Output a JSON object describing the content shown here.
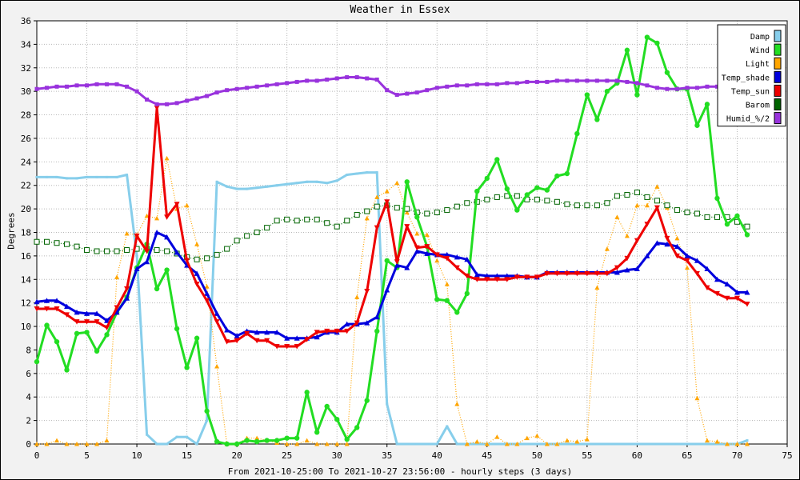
{
  "chart_data": {
    "type": "line",
    "title": "Weather in Essex",
    "xlabel": "From 2021-10-25:00 To 2021-10-27 23:56:00 - hourly steps (3 days)",
    "ylabel": "Degrees",
    "xlim": [
      0,
      75
    ],
    "ylim": [
      0,
      36
    ],
    "xticks": [
      0,
      5,
      10,
      15,
      20,
      25,
      30,
      35,
      40,
      45,
      50,
      55,
      60,
      65,
      70,
      75
    ],
    "yticks": [
      0,
      2,
      4,
      6,
      8,
      10,
      12,
      14,
      16,
      18,
      20,
      22,
      24,
      26,
      28,
      30,
      32,
      34,
      36
    ],
    "grid": true,
    "legend_position": "top-right",
    "x": [
      0,
      1,
      2,
      3,
      4,
      5,
      6,
      7,
      8,
      9,
      10,
      11,
      12,
      13,
      14,
      15,
      16,
      17,
      18,
      19,
      20,
      21,
      22,
      23,
      24,
      25,
      26,
      27,
      28,
      29,
      30,
      31,
      32,
      33,
      34,
      35,
      36,
      37,
      38,
      39,
      40,
      41,
      42,
      43,
      44,
      45,
      46,
      47,
      48,
      49,
      50,
      51,
      52,
      53,
      54,
      55,
      56,
      57,
      58,
      59,
      60,
      61,
      62,
      63,
      64,
      65,
      66,
      67,
      68,
      69,
      70,
      71
    ],
    "series": [
      {
        "name": "Damp",
        "color": "#87ceeb",
        "values": [
          22.7,
          22.7,
          22.7,
          22.6,
          22.6,
          22.7,
          22.7,
          22.7,
          22.7,
          22.9,
          16.0,
          0.8,
          0.0,
          0.0,
          0.6,
          0.6,
          0.0,
          2.0,
          22.3,
          21.9,
          21.7,
          21.7,
          21.8,
          21.9,
          22.0,
          22.1,
          22.2,
          22.3,
          22.3,
          22.2,
          22.4,
          22.9,
          23.0,
          23.1,
          23.1,
          3.4,
          0.0,
          0.0,
          0.0,
          0.0,
          0.0,
          1.5,
          0.0,
          0.0,
          0.0,
          0.0,
          0.0,
          0.0,
          0.0,
          0.0,
          0.0,
          0.0,
          0.0,
          0.0,
          0.0,
          0.0,
          0.0,
          0.0,
          0.0,
          0.0,
          0.0,
          0.0,
          0.0,
          0.0,
          0.0,
          0.0,
          0.0,
          0.0,
          0.0,
          0.0,
          0.0,
          0.3
        ]
      },
      {
        "name": "Wind",
        "color": "#22dd22",
        "values": [
          7.0,
          10.1,
          8.7,
          6.3,
          9.4,
          9.5,
          7.9,
          9.3,
          11.2,
          12.5,
          15.0,
          17.0,
          13.2,
          14.8,
          9.8,
          6.5,
          9.0,
          2.8,
          0.2,
          0.0,
          0.0,
          0.3,
          0.2,
          0.3,
          0.3,
          0.5,
          0.5,
          4.4,
          1.0,
          3.2,
          2.1,
          0.4,
          1.4,
          3.7,
          9.6,
          15.6,
          15.0,
          22.3,
          19.3,
          16.8,
          12.3,
          12.2,
          11.2,
          12.8,
          21.5,
          22.6,
          24.2,
          21.7,
          19.9,
          21.2,
          21.8,
          21.6,
          22.8,
          23.0,
          26.4,
          29.7,
          27.6,
          30.0,
          30.7,
          33.5,
          29.7,
          34.6,
          34.1,
          31.6,
          30.2,
          30.2,
          27.1,
          28.9,
          20.9,
          18.7,
          19.4,
          17.8
        ]
      },
      {
        "name": "Light",
        "color": "#ffa500",
        "values": [
          0.0,
          0.0,
          0.3,
          0.0,
          0.0,
          0.0,
          0.0,
          0.3,
          14.2,
          17.9,
          17.8,
          19.4,
          19.2,
          24.3,
          20.0,
          20.3,
          17.0,
          13.4,
          6.6,
          0.0,
          0.0,
          0.5,
          0.5,
          0.3,
          0.1,
          0.0,
          0.0,
          0.3,
          0.0,
          0.0,
          0.0,
          0.0,
          12.5,
          19.2,
          21.0,
          21.5,
          22.2,
          19.7,
          17.9,
          17.8,
          15.6,
          13.6,
          3.4,
          0.0,
          0.2,
          0.0,
          0.6,
          0.0,
          0.0,
          0.5,
          0.7,
          0.0,
          0.0,
          0.3,
          0.2,
          0.4,
          13.3,
          16.6,
          19.3,
          17.7,
          20.3,
          20.3,
          21.9,
          20.1,
          17.5,
          15.0,
          3.9,
          0.3,
          0.2,
          0.0,
          0.0,
          0.0
        ]
      },
      {
        "name": "Temp_shade",
        "color": "#0000dd",
        "values": [
          12.1,
          12.2,
          12.2,
          11.7,
          11.2,
          11.1,
          11.1,
          10.5,
          11.2,
          12.4,
          14.9,
          15.5,
          18.0,
          17.6,
          16.3,
          15.2,
          14.5,
          12.8,
          11.1,
          9.7,
          9.2,
          9.6,
          9.5,
          9.5,
          9.5,
          9.0,
          9.0,
          9.0,
          9.1,
          9.5,
          9.5,
          10.2,
          10.2,
          10.3,
          10.8,
          13.1,
          15.2,
          15.0,
          16.4,
          16.2,
          16.1,
          16.1,
          15.9,
          15.7,
          14.4,
          14.3,
          14.3,
          14.3,
          14.3,
          14.2,
          14.2,
          14.6,
          14.6,
          14.6,
          14.6,
          14.6,
          14.6,
          14.6,
          14.6,
          14.8,
          14.9,
          16.0,
          17.1,
          17.0,
          16.8,
          16.0,
          15.6,
          14.9,
          14.0,
          13.6,
          12.9,
          12.9
        ]
      },
      {
        "name": "Temp_sun",
        "color": "#ee0000",
        "values": [
          11.5,
          11.5,
          11.5,
          11.0,
          10.4,
          10.4,
          10.4,
          9.9,
          11.6,
          13.2,
          17.7,
          16.4,
          28.6,
          19.3,
          20.4,
          15.6,
          13.6,
          12.2,
          10.4,
          8.7,
          8.8,
          9.4,
          8.8,
          8.8,
          8.3,
          8.3,
          8.3,
          8.9,
          9.5,
          9.6,
          9.6,
          9.6,
          10.3,
          13.0,
          18.4,
          20.6,
          15.5,
          18.5,
          16.7,
          16.8,
          16.1,
          15.8,
          15.0,
          14.3,
          14.0,
          14.0,
          14.0,
          14.0,
          14.2,
          14.2,
          14.2,
          14.5,
          14.5,
          14.5,
          14.5,
          14.5,
          14.5,
          14.5,
          15.0,
          15.8,
          17.3,
          18.7,
          20.1,
          17.5,
          16.0,
          15.6,
          14.5,
          13.3,
          12.8,
          12.4,
          12.4,
          11.9
        ]
      },
      {
        "name": "Barom",
        "color": "#006400",
        "values": [
          17.2,
          17.2,
          17.1,
          17.0,
          16.8,
          16.5,
          16.4,
          16.4,
          16.4,
          16.5,
          16.6,
          16.6,
          16.5,
          16.4,
          16.2,
          15.9,
          15.7,
          15.8,
          16.1,
          16.6,
          17.3,
          17.7,
          18.0,
          18.4,
          19.0,
          19.1,
          19.0,
          19.1,
          19.1,
          18.8,
          18.5,
          19.0,
          19.5,
          19.8,
          20.2,
          20.3,
          20.1,
          20.0,
          19.7,
          19.6,
          19.7,
          19.9,
          20.2,
          20.5,
          20.6,
          20.8,
          21.0,
          21.1,
          21.1,
          20.8,
          20.8,
          20.7,
          20.6,
          20.4,
          20.3,
          20.3,
          20.3,
          20.5,
          21.1,
          21.2,
          21.4,
          21.0,
          20.7,
          20.3,
          19.9,
          19.7,
          19.6,
          19.3,
          19.3,
          19.3,
          18.9,
          18.5
        ]
      },
      {
        "name": "Humid_%/2",
        "color": "#9933dd",
        "values": [
          30.2,
          30.3,
          30.4,
          30.4,
          30.5,
          30.5,
          30.6,
          30.6,
          30.6,
          30.4,
          30.0,
          29.3,
          28.9,
          28.9,
          29.0,
          29.2,
          29.4,
          29.6,
          29.9,
          30.1,
          30.2,
          30.3,
          30.4,
          30.5,
          30.6,
          30.7,
          30.8,
          30.9,
          30.9,
          31.0,
          31.1,
          31.2,
          31.2,
          31.1,
          31.0,
          30.1,
          29.7,
          29.8,
          29.9,
          30.1,
          30.3,
          30.4,
          30.5,
          30.5,
          30.6,
          30.6,
          30.6,
          30.7,
          30.7,
          30.8,
          30.8,
          30.8,
          30.9,
          30.9,
          30.9,
          30.9,
          30.9,
          30.9,
          30.9,
          30.8,
          30.7,
          30.5,
          30.3,
          30.2,
          30.2,
          30.3,
          30.3,
          30.4,
          30.4,
          30.4,
          30.4,
          30.4
        ]
      }
    ]
  }
}
